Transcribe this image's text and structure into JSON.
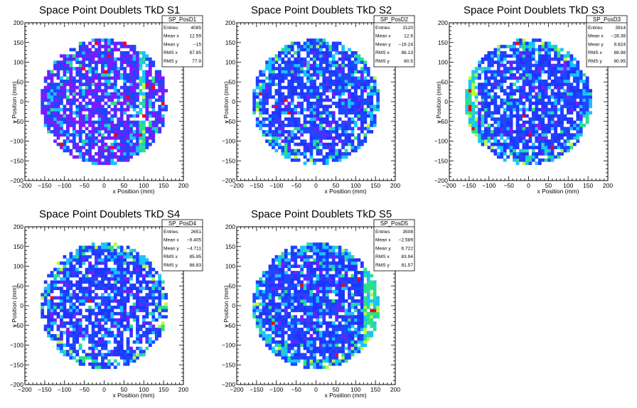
{
  "canvas": {
    "background": "#ffffff"
  },
  "colors": {
    "low": "#2a00ff",
    "mid": "#19c3ff",
    "high": "#ff0000",
    "empty": "#ffffff"
  },
  "chart_data": [
    {
      "type": "heatmap",
      "title": "Space Point Doublets TkD S1",
      "xlabel": "x Position (mm)",
      "ylabel": "y Position (mm)",
      "xlim": [
        -200,
        200
      ],
      "ylim": [
        -200,
        200
      ],
      "xticks": [
        -200,
        -150,
        -100,
        -50,
        0,
        50,
        100,
        150,
        200
      ],
      "yticks": [
        -200,
        -150,
        -100,
        -50,
        0,
        50,
        100,
        150,
        200
      ],
      "bin_width_mm": 8,
      "radius_mm": 160,
      "seed": 11,
      "density": 0.8,
      "purple_fraction": 0.45,
      "ring_hot": false,
      "hot_band": {
        "x_from": 90,
        "x_to": 105
      },
      "stats": {
        "name": "SP_PosD1",
        "rows": [
          {
            "label": "Entries",
            "value": "4085"
          },
          {
            "label": "Mean x",
            "value": "12.59"
          },
          {
            "label": "Mean y",
            "value": "−15"
          },
          {
            "label": "RMS x",
            "value": "87.85"
          },
          {
            "label": "RMS y",
            "value": "77.9"
          }
        ]
      },
      "grid": false,
      "legend": "top-right"
    },
    {
      "type": "heatmap",
      "title": "Space Point Doublets TkD S2",
      "xlabel": "x Position (mm)",
      "ylabel": "y Position (mm)",
      "xlim": [
        -200,
        200
      ],
      "ylim": [
        -200,
        200
      ],
      "xticks": [
        -200,
        -150,
        -100,
        -50,
        0,
        50,
        100,
        150,
        200
      ],
      "yticks": [
        -200,
        -150,
        -100,
        -50,
        0,
        50,
        100,
        150,
        200
      ],
      "bin_width_mm": 8,
      "radius_mm": 160,
      "seed": 23,
      "density": 0.78,
      "purple_fraction": 0.1,
      "ring_hot": true,
      "hot_band": null,
      "stats": {
        "name": "SP_PosD2",
        "rows": [
          {
            "label": "Entries",
            "value": "3120"
          },
          {
            "label": "Mean x",
            "value": "12.6"
          },
          {
            "label": "Mean y",
            "value": "−16.24"
          },
          {
            "label": "RMS x",
            "value": "86.13"
          },
          {
            "label": "RMS y",
            "value": "80.5"
          }
        ]
      },
      "grid": false,
      "legend": "top-right"
    },
    {
      "type": "heatmap",
      "title": "Space Point Doublets TkD S3",
      "xlabel": "x Position (mm)",
      "ylabel": "y Position (mm)",
      "xlim": [
        -200,
        200
      ],
      "ylim": [
        -200,
        200
      ],
      "xticks": [
        -200,
        -150,
        -100,
        -50,
        0,
        50,
        100,
        150,
        200
      ],
      "yticks": [
        -200,
        -150,
        -100,
        -50,
        0,
        50,
        100,
        150,
        200
      ],
      "bin_width_mm": 8,
      "radius_mm": 160,
      "seed": 37,
      "density": 0.8,
      "purple_fraction": 0.08,
      "ring_hot": true,
      "hot_band": {
        "x_from": -160,
        "x_to": -130
      },
      "stats": {
        "name": "SP_PosD3",
        "rows": [
          {
            "label": "Entries",
            "value": "3914"
          },
          {
            "label": "Mean x",
            "value": "−28.38"
          },
          {
            "label": "Mean y",
            "value": "9.824"
          },
          {
            "label": "RMS x",
            "value": "88.98"
          },
          {
            "label": "RMS y",
            "value": "80.95"
          }
        ]
      },
      "grid": false,
      "legend": "top-right"
    },
    {
      "type": "heatmap",
      "title": "Space Point Doublets TkD S4",
      "xlabel": "x Position (mm)",
      "ylabel": "y Position (mm)",
      "xlim": [
        -200,
        200
      ],
      "ylim": [
        -200,
        200
      ],
      "xticks": [
        -200,
        -150,
        -100,
        -50,
        0,
        50,
        100,
        150,
        200
      ],
      "yticks": [
        -200,
        -150,
        -100,
        -50,
        0,
        50,
        100,
        150,
        200
      ],
      "bin_width_mm": 8,
      "radius_mm": 160,
      "seed": 51,
      "density": 0.76,
      "purple_fraction": 0.1,
      "ring_hot": true,
      "hot_band": null,
      "stats": {
        "name": "SP_PosD4",
        "rows": [
          {
            "label": "Entries",
            "value": "2651"
          },
          {
            "label": "Mean x",
            "value": "−9.405"
          },
          {
            "label": "Mean y",
            "value": "−4.711"
          },
          {
            "label": "RMS x",
            "value": "85.95"
          },
          {
            "label": "RMS y",
            "value": "88.83"
          }
        ]
      },
      "grid": false,
      "legend": "top-right"
    },
    {
      "type": "heatmap",
      "title": "Space Point Doublets TkD S5",
      "xlabel": "x Position (mm)",
      "ylabel": "y Position (mm)",
      "xlim": [
        -200,
        200
      ],
      "ylim": [
        -200,
        200
      ],
      "xticks": [
        -200,
        -150,
        -100,
        -50,
        0,
        50,
        100,
        150,
        200
      ],
      "yticks": [
        -200,
        -150,
        -100,
        -50,
        0,
        50,
        100,
        150,
        200
      ],
      "bin_width_mm": 8,
      "radius_mm": 160,
      "seed": 67,
      "density": 0.85,
      "purple_fraction": 0.05,
      "ring_hot": true,
      "hot_band": {
        "x_from": 120,
        "x_to": 160
      },
      "stats": {
        "name": "SP_PosD5",
        "rows": [
          {
            "label": "Entries",
            "value": "3508"
          },
          {
            "label": "Mean x",
            "value": "−2.589"
          },
          {
            "label": "Mean y",
            "value": "6.722"
          },
          {
            "label": "RMS x",
            "value": "83.94"
          },
          {
            "label": "RMS y",
            "value": "81.57"
          }
        ]
      },
      "grid": false,
      "legend": "top-right"
    }
  ]
}
